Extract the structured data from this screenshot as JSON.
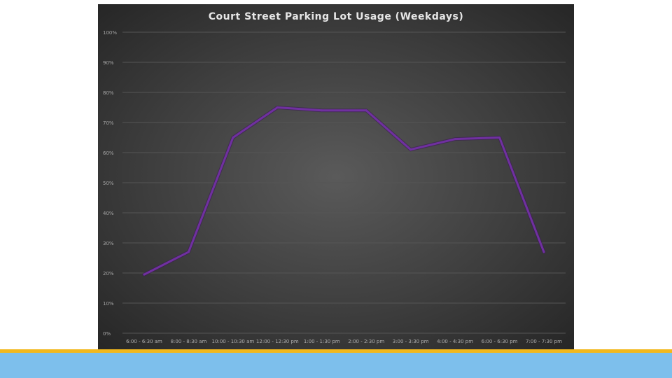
{
  "chart_data": {
    "type": "line",
    "title": "Court Street Parking Lot Usage (Weekdays)",
    "categories": [
      "6:00 - 6:30 am",
      "8:00 - 8:30 am",
      "10:00 - 10:30 am",
      "12:00 - 12:30 pm",
      "1:00 - 1:30 pm",
      "2:00 - 2:30 pm",
      "3:00 - 3:30 pm",
      "4:00 - 4:30 pm",
      "6:00 - 6:30 pm",
      "7:00 - 7:30 pm"
    ],
    "series": [
      {
        "values": [
          19.5,
          27,
          65,
          75,
          74,
          74,
          61,
          64.5,
          65,
          27
        ]
      }
    ],
    "ylim": [
      0,
      100
    ],
    "yticks": [
      "0%",
      "10%",
      "20%",
      "30%",
      "40%",
      "50%",
      "60%",
      "70%",
      "80%",
      "90%",
      "100%"
    ],
    "grid": true,
    "line_color": "#7030a0",
    "background_color": "#404040",
    "gridline_color": "#555555"
  },
  "footer": {
    "gold_color": "#f2b81c",
    "blue_color": "#7dbfec"
  }
}
